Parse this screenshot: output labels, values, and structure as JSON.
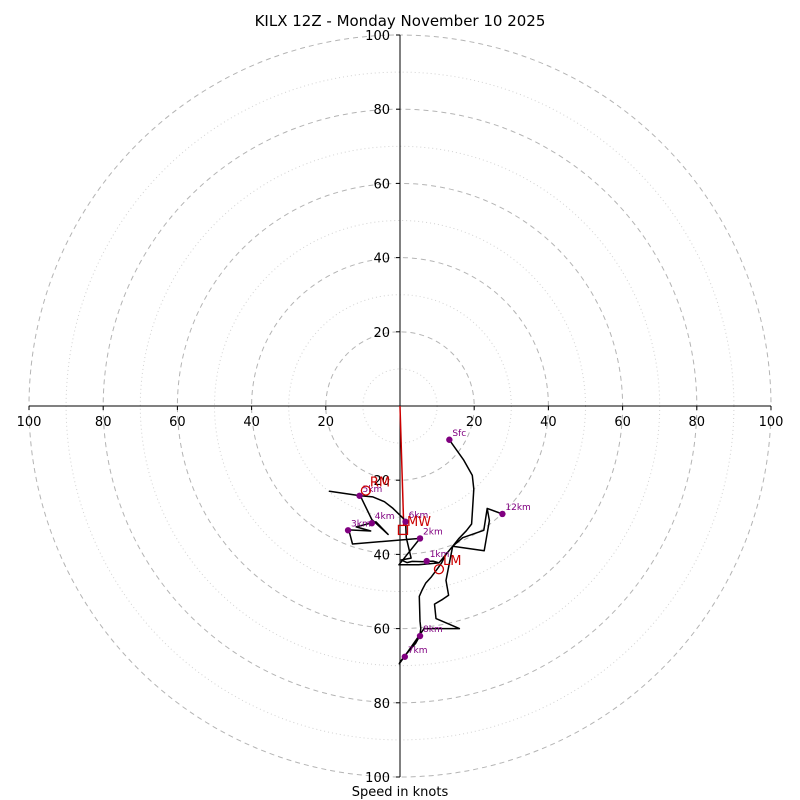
{
  "chart_data": {
    "type": "hodograph",
    "title": "KILX 12Z - Monday November 10 2025",
    "xlabel": "Speed in knots",
    "range": [
      -100,
      100
    ],
    "ring_major": [
      20,
      40,
      60,
      80,
      100
    ],
    "ring_minor": [
      10,
      30,
      50,
      70,
      90
    ],
    "axis_ticks_right": [
      "20",
      "40",
      "60",
      "80",
      "100"
    ],
    "axis_ticks_left": [
      "20",
      "40",
      "60",
      "80",
      "100"
    ],
    "axis_ticks_top": [
      "20",
      "40",
      "60",
      "80",
      "100"
    ],
    "axis_ticks_bottom": [
      "20",
      "40",
      "60",
      "80",
      "100"
    ],
    "trace": [
      [
        13.3,
        -9.1
      ],
      [
        17.2,
        -14.6
      ],
      [
        19.5,
        -18.7
      ],
      [
        19.9,
        -22.4
      ],
      [
        19.5,
        -28.9
      ],
      [
        19.3,
        -31.8
      ],
      [
        17.9,
        -33.6
      ],
      [
        15.8,
        -35.8
      ],
      [
        14.2,
        -37.8
      ],
      [
        12.4,
        -40.0
      ],
      [
        11.2,
        -42.3
      ],
      [
        10.0,
        -44.0
      ],
      [
        8.5,
        -46.0
      ],
      [
        6.9,
        -47.8
      ],
      [
        6.0,
        -49.5
      ],
      [
        5.2,
        -51.3
      ],
      [
        5.4,
        -58.0
      ],
      [
        5.6,
        -60.0
      ],
      [
        5.3,
        -62.0
      ],
      [
        4.2,
        -64.0
      ],
      [
        2.0,
        -66.5
      ],
      [
        0.0,
        -69.0
      ],
      [
        -0.2,
        -69.5
      ],
      [
        6.5,
        -60.0
      ],
      [
        16.0,
        -60.0
      ],
      [
        9.7,
        -57.3
      ],
      [
        9.3,
        -53.4
      ],
      [
        11.5,
        -52.1
      ],
      [
        13.1,
        -51.0
      ],
      [
        12.4,
        -47.0
      ],
      [
        14.2,
        -37.8
      ],
      [
        22.7,
        -39.0
      ],
      [
        24.1,
        -30.9
      ],
      [
        23.5,
        -27.6
      ],
      [
        27.6,
        -29.1
      ],
      [
        23.5,
        -27.6
      ],
      [
        22.6,
        -33.5
      ],
      [
        16.9,
        -35.5
      ],
      [
        14.2,
        -37.8
      ],
      [
        12.4,
        -40.0
      ],
      [
        10.5,
        -42.3
      ],
      [
        5.0,
        -42.8
      ],
      [
        -0.3,
        -42.8
      ],
      [
        5.4,
        -35.7
      ],
      [
        -12.8,
        -37.2
      ],
      [
        -13.8,
        -33.4
      ],
      [
        -7.9,
        -33.7
      ],
      [
        -11.8,
        -32.6
      ],
      [
        -6.5,
        -31.2
      ],
      [
        -3.2,
        -34.6
      ],
      [
        -7.6,
        -30.6
      ],
      [
        -10.7,
        -24.2
      ],
      [
        -19.0,
        -23.0
      ],
      [
        -10.7,
        -24.2
      ],
      [
        -7.3,
        -24.5
      ],
      [
        -4.2,
        -25.8
      ],
      [
        -1.9,
        -27.6
      ],
      [
        0.9,
        -30.3
      ],
      [
        1.5,
        -31.1
      ],
      [
        1.6,
        -33.3
      ],
      [
        1.7,
        -35.5
      ],
      [
        3.0,
        -41.0
      ],
      [
        0.3,
        -41.5
      ],
      [
        1.9,
        -42.2
      ],
      [
        3.3,
        -41.9
      ],
      [
        6.6,
        -42.0
      ],
      [
        7.5,
        -41.9
      ],
      [
        8.9,
        -41.8
      ],
      [
        10.5,
        -42.3
      ]
    ],
    "height_points": [
      {
        "label": "Sfc",
        "u": 13.3,
        "v": -9.1
      },
      {
        "label": "1km",
        "u": 7.2,
        "v": -41.8
      },
      {
        "label": "2km",
        "u": 5.4,
        "v": -35.7
      },
      {
        "label": "3km",
        "u": -14.0,
        "v": -33.5
      },
      {
        "label": "4km",
        "u": -7.6,
        "v": -31.6
      },
      {
        "label": "5km",
        "u": -10.9,
        "v": -24.2
      },
      {
        "label": "6km",
        "u": 1.5,
        "v": -31.2
      },
      {
        "label": "7km",
        "u": 1.3,
        "v": -67.6
      },
      {
        "label": "8km",
        "u": 5.4,
        "v": -62.0
      },
      {
        "label": "12km",
        "u": 27.6,
        "v": -29.1
      }
    ],
    "storm_motions": [
      {
        "label": "RM",
        "u": -9.2,
        "v": -22.8,
        "marker": "circle"
      },
      {
        "label": "LM",
        "u": 10.5,
        "v": -44.0,
        "marker": "circle"
      },
      {
        "label": "MW",
        "u": 0.8,
        "v": -33.4,
        "marker": "square"
      }
    ],
    "shear_vector": {
      "from": [
        0.0,
        0.0
      ],
      "to": [
        1.0,
        -32.3
      ]
    },
    "colors": {
      "trace": "#000000",
      "height_point": "#800080",
      "storm_motion": "#cc0000",
      "ring_major": "#b4b4b4",
      "ring_minor": "#d2d2d2",
      "axis": "#000000"
    }
  }
}
